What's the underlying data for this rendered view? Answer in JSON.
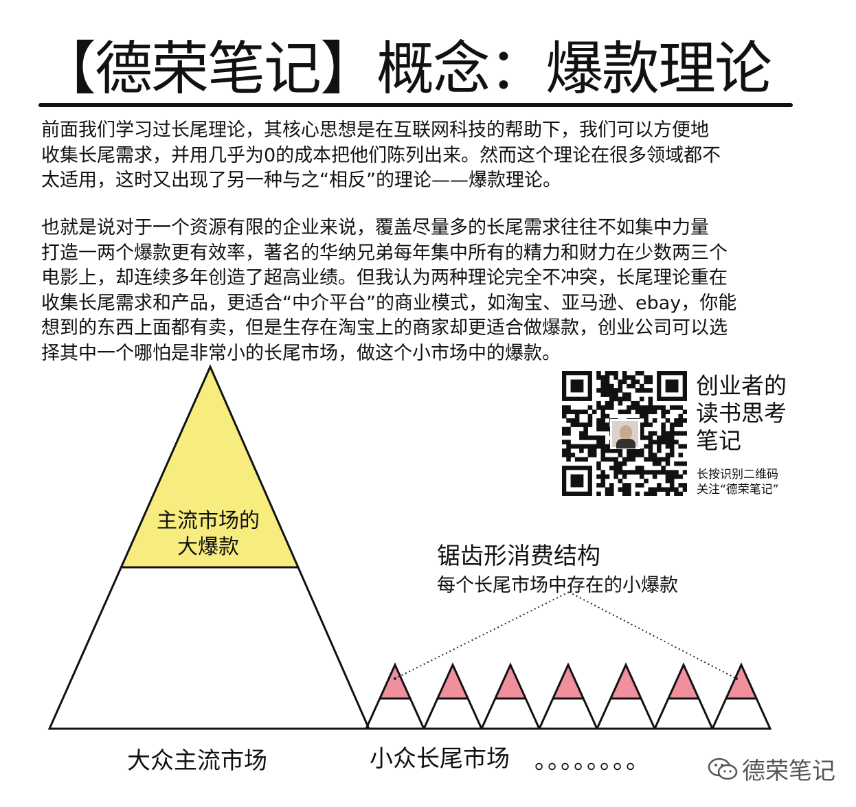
{
  "title": "【德荣笔记】概念：爆款理论",
  "paragraph1": {
    "lines": [
      "前面我们学习过长尾理论，其核心思想是在互联网科技的帮助下，我们可以方便地",
      "收集长尾需求，并用几乎为0的成本把他们陈列出来。然而这个理论在很多领域都不",
      "太适用，这时又出现了另一种与之“相反”的理论——爆款理论。"
    ]
  },
  "paragraph2": {
    "lines": [
      "也就是说对于一个资源有限的企业来说，覆盖尽量多的长尾需求往往不如集中力量",
      "打造一两个爆款更有效率，著名的华纳兄弟每年集中所有的精力和财力在少数两三个",
      "电影上，却连续多年创造了超高业绩。但我认为两种理论完全不冲突，长尾理论重在",
      "收集长尾需求和产品，更适合“中介平台”的商业模式，如淘宝、亚马逊、ebay，你能",
      "想到的东西上面都有卖，但是生存在淘宝上的商家却更适合做爆款，创业公司可以选",
      "择其中一个哪怕是非常小的长尾市场，做这个小市场中的爆款。"
    ]
  },
  "diagram": {
    "peak_label": [
      "主流市场的",
      "大爆款"
    ],
    "mass_market_label": "大众主流市场",
    "niche_market_label": "小众长尾市场",
    "trailing_dots": "。。。。。。。。",
    "sawtooth_title": "锯齿形消费结构",
    "sawtooth_subtitle": "每个长尾市场中存在的小爆款",
    "small_peaks_count": 7,
    "colors": {
      "big_peak_fill": "#f7ec7e",
      "small_peak_fill": "#f0909e",
      "line": "#111111"
    }
  },
  "account": {
    "name_lines": [
      "创业者的",
      "读书思考",
      "笔记"
    ],
    "hint_lines": [
      "长按识别二维码",
      "关注“德荣笔记”"
    ],
    "qr_icon": "qr-code-icon"
  },
  "watermark": {
    "icon": "wechat-icon",
    "text": "德荣笔记"
  }
}
